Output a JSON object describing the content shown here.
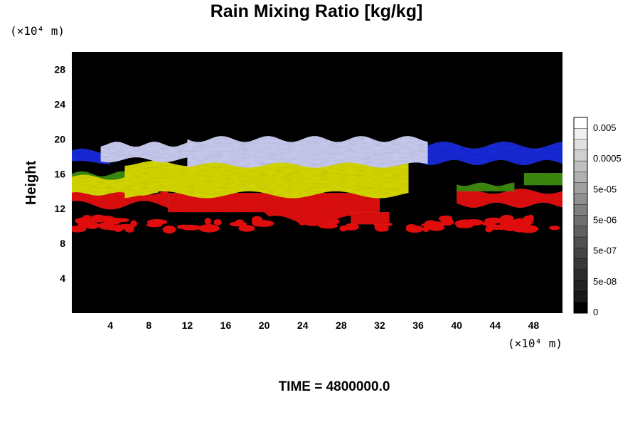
{
  "chart_data": {
    "type": "heatmap",
    "title": "Rain Mixing Ratio [kg/kg]",
    "ylabel": "Height",
    "xlabel": "",
    "x_unit_label": "(×10⁴ m)",
    "y_unit_label": "(×10⁴ m)",
    "footer": "TIME = 4800000.0",
    "xlim": [
      0,
      51
    ],
    "ylim": [
      0,
      30
    ],
    "x_ticks": [
      4,
      8,
      12,
      16,
      20,
      24,
      28,
      32,
      36,
      40,
      44,
      48
    ],
    "y_ticks": [
      4,
      8,
      12,
      16,
      20,
      24,
      28
    ],
    "background_color": "#000000",
    "layers": [
      {
        "value_class": "blue",
        "color": "#1a2ad8",
        "x_range": [
          0,
          51
        ],
        "y_range": [
          17,
          19.5
        ]
      },
      {
        "value_class": "light-lavender",
        "color": "#c9cbf0",
        "x_range": [
          3,
          37
        ],
        "y_range": [
          17,
          20
        ]
      },
      {
        "value_class": "yellow",
        "color": "#d6d800",
        "x_range": [
          0,
          35
        ],
        "y_range": [
          13.5,
          17
        ]
      },
      {
        "value_class": "green",
        "color": "#3c8a12",
        "x_range": [
          0,
          51
        ],
        "y_range": [
          14,
          16
        ]
      },
      {
        "value_class": "red",
        "color": "#e00d0d",
        "x_range": [
          0,
          51
        ],
        "y_range": [
          9.5,
          14
        ]
      }
    ],
    "colorbar": {
      "ticks": [
        "0.005",
        "0.0005",
        "5e-05",
        "5e-06",
        "5e-07",
        "5e-08",
        "0"
      ],
      "colors": [
        "#ffffff",
        "#f0f0f0",
        "#e0e0e0",
        "#d0d0d0",
        "#c0c0c0",
        "#b0b0b0",
        "#a0a0a0",
        "#909090",
        "#808080",
        "#707070",
        "#606060",
        "#505050",
        "#444444",
        "#383838",
        "#2c2c2c",
        "#222222",
        "#181818",
        "#000000"
      ]
    }
  }
}
